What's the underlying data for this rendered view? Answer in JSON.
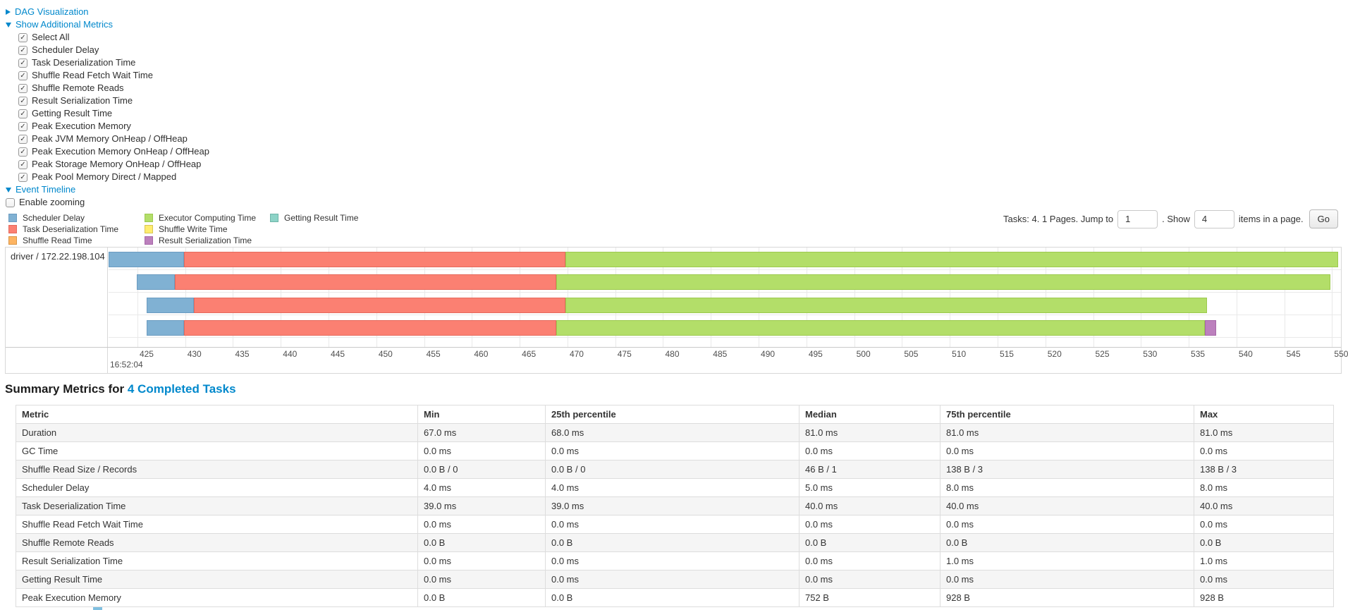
{
  "controls": {
    "dag_toggle": "DAG Visualization",
    "metrics_toggle": "Show Additional Metrics",
    "metric_checkboxes": [
      "Select All",
      "Scheduler Delay",
      "Task Deserialization Time",
      "Shuffle Read Fetch Wait Time",
      "Shuffle Remote Reads",
      "Result Serialization Time",
      "Getting Result Time",
      "Peak Execution Memory",
      "Peak JVM Memory OnHeap / OffHeap",
      "Peak Execution Memory OnHeap / OffHeap",
      "Peak Storage Memory OnHeap / OffHeap",
      "Peak Pool Memory Direct / Mapped"
    ],
    "timeline_toggle": "Event Timeline",
    "enable_zooming_label": "Enable zooming"
  },
  "pagination": {
    "tasks_text": "Tasks: 4. 1 Pages. Jump to",
    "jump_value": "1",
    "show_text": ". Show",
    "show_value": "4",
    "items_text": "items in a page.",
    "go_label": "Go"
  },
  "colors": {
    "link": "#0088cc",
    "segments": {
      "scheduler_delay": {
        "fill": "#80B1D3",
        "border": "#6b9cc1"
      },
      "task_deserialization": {
        "fill": "#FB8072",
        "border": "#e56a5d"
      },
      "shuffle_read": {
        "fill": "#FDB462",
        "border": "#d99547"
      },
      "executor_computing": {
        "fill": "#B3DE69",
        "border": "#9cc94e"
      },
      "shuffle_write": {
        "fill": "#FFED6F",
        "border": "#d9c552"
      },
      "result_serialization": {
        "fill": "#BC80BD",
        "border": "#a667a8"
      },
      "getting_result": {
        "fill": "#8DD3C7",
        "border": "#6fb5a9"
      }
    }
  },
  "legend": {
    "columns": [
      [
        {
          "key": "scheduler_delay",
          "label": "Scheduler Delay"
        },
        {
          "key": "task_deserialization",
          "label": "Task Deserialization Time"
        },
        {
          "key": "shuffle_read",
          "label": "Shuffle Read Time"
        }
      ],
      [
        {
          "key": "executor_computing",
          "label": "Executor Computing Time"
        },
        {
          "key": "shuffle_write",
          "label": "Shuffle Write Time"
        },
        {
          "key": "result_serialization",
          "label": "Result Serialization Time"
        }
      ],
      [
        {
          "key": "getting_result",
          "label": "Getting Result Time"
        }
      ]
    ]
  },
  "chart_data": {
    "type": "gantt-timeline",
    "group_label": "driver / 172.22.198.104",
    "axis": {
      "units": "milliseconds after 16:52:04",
      "time_label": "16:52:04",
      "start": 421.98,
      "end": 550.93,
      "tick_start": 425,
      "tick_end": 550,
      "tick_step": 5
    },
    "tasks": [
      {
        "segments": [
          {
            "key": "scheduler_delay",
            "start": 421.98,
            "end": 429.9
          },
          {
            "key": "task_deserialization",
            "start": 429.9,
            "end": 469.8
          },
          {
            "key": "executor_computing",
            "start": 469.8,
            "end": 550.6
          }
        ]
      },
      {
        "segments": [
          {
            "key": "scheduler_delay",
            "start": 424.9,
            "end": 428.9
          },
          {
            "key": "task_deserialization",
            "start": 428.9,
            "end": 468.8
          },
          {
            "key": "executor_computing",
            "start": 468.8,
            "end": 549.8
          }
        ]
      },
      {
        "segments": [
          {
            "key": "scheduler_delay",
            "start": 426.0,
            "end": 430.9
          },
          {
            "key": "task_deserialization",
            "start": 430.9,
            "end": 469.8
          },
          {
            "key": "executor_computing",
            "start": 469.8,
            "end": 536.9
          }
        ]
      },
      {
        "segments": [
          {
            "key": "scheduler_delay",
            "start": 426.0,
            "end": 429.9
          },
          {
            "key": "task_deserialization",
            "start": 429.9,
            "end": 468.8
          },
          {
            "key": "executor_computing",
            "start": 468.8,
            "end": 536.7
          },
          {
            "key": "result_serialization",
            "start": 536.7,
            "end": 537.9
          }
        ]
      }
    ]
  },
  "summary": {
    "title_prefix": "Summary Metrics for",
    "title_link": "4 Completed Tasks",
    "columns": [
      "Metric",
      "Min",
      "25th percentile",
      "Median",
      "75th percentile",
      "Max"
    ],
    "rows": [
      [
        "Duration",
        "67.0 ms",
        "68.0 ms",
        "81.0 ms",
        "81.0 ms",
        "81.0 ms"
      ],
      [
        "GC Time",
        "0.0 ms",
        "0.0 ms",
        "0.0 ms",
        "0.0 ms",
        "0.0 ms"
      ],
      [
        "Shuffle Read Size / Records",
        "0.0 B / 0",
        "0.0 B / 0",
        "46 B / 1",
        "138 B / 3",
        "138 B / 3"
      ],
      [
        "Scheduler Delay",
        "4.0 ms",
        "4.0 ms",
        "5.0 ms",
        "8.0 ms",
        "8.0 ms"
      ],
      [
        "Task Deserialization Time",
        "39.0 ms",
        "39.0 ms",
        "40.0 ms",
        "40.0 ms",
        "40.0 ms"
      ],
      [
        "Shuffle Read Fetch Wait Time",
        "0.0 ms",
        "0.0 ms",
        "0.0 ms",
        "0.0 ms",
        "0.0 ms"
      ],
      [
        "Shuffle Remote Reads",
        "0.0 B",
        "0.0 B",
        "0.0 B",
        "0.0 B",
        "0.0 B"
      ],
      [
        "Result Serialization Time",
        "0.0 ms",
        "0.0 ms",
        "0.0 ms",
        "1.0 ms",
        "1.0 ms"
      ],
      [
        "Getting Result Time",
        "0.0 ms",
        "0.0 ms",
        "0.0 ms",
        "0.0 ms",
        "0.0 ms"
      ],
      [
        "Peak Execution Memory",
        "0.0 B",
        "0.0 B",
        "752 B",
        "928 B",
        "928 B"
      ]
    ]
  }
}
